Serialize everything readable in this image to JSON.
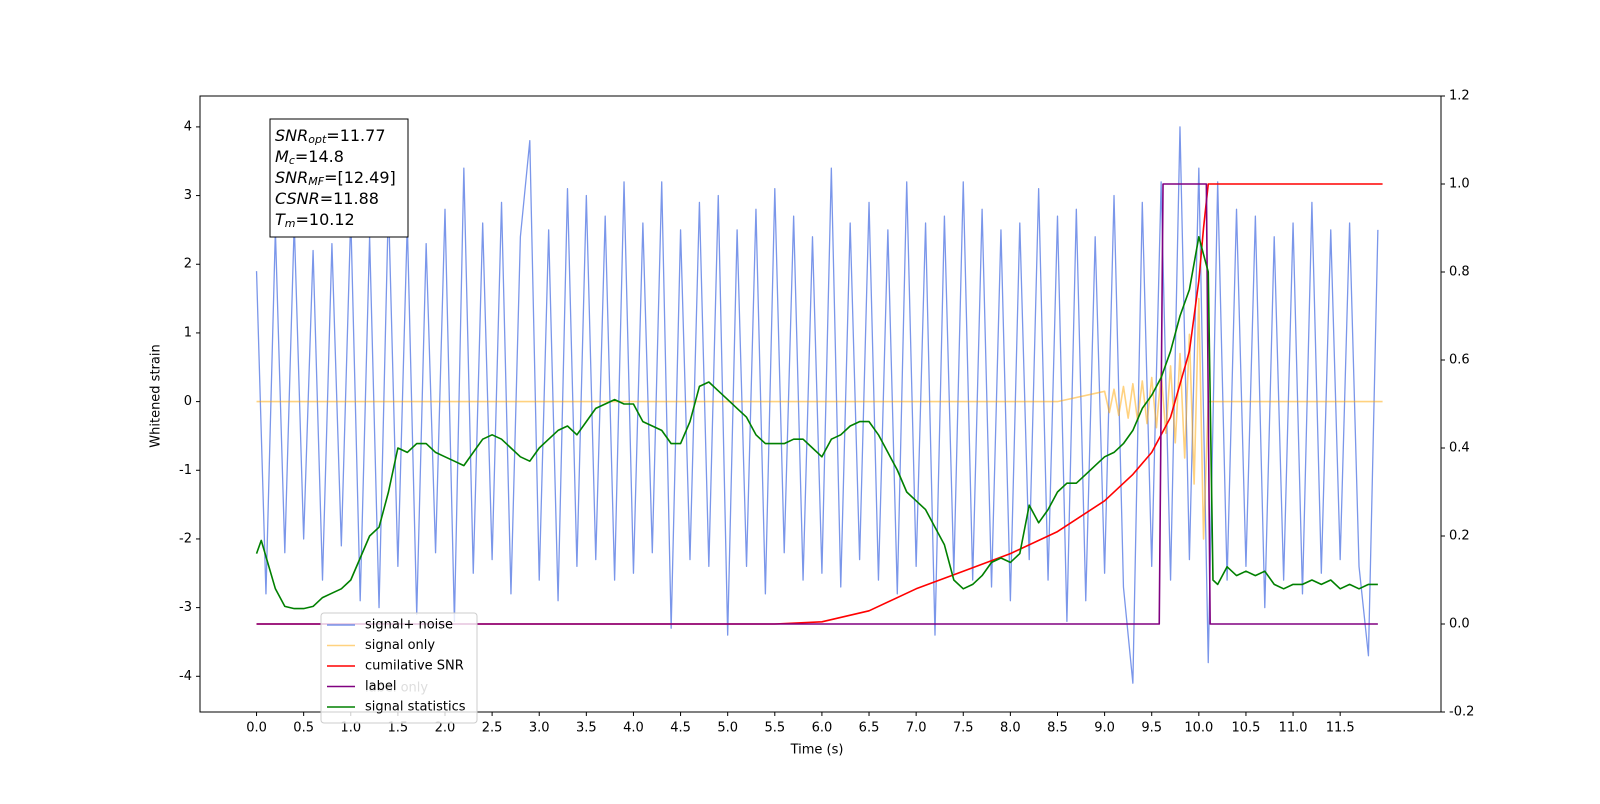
{
  "chart_data": {
    "type": "line",
    "xlabel": "Time (s)",
    "ylabel": "Whitened strain",
    "xlim": [
      -0.6,
      12.57
    ],
    "ylim": [
      -4.52,
      4.45
    ],
    "y2lim": [
      -0.2,
      1.2
    ],
    "xticks": [
      {
        "value": 0,
        "label": "0.0"
      },
      0.5,
      {
        "value": 1,
        "label": "1.0"
      },
      1.5,
      {
        "value": 2,
        "label": "2.0"
      },
      2.5,
      {
        "value": 3,
        "label": "3.0"
      },
      3.5,
      {
        "value": 4,
        "label": "4.0"
      },
      4.5,
      {
        "value": 5,
        "label": "5.0"
      },
      5.5,
      {
        "value": 6,
        "label": "6.0"
      },
      6.5,
      {
        "value": 7,
        "label": "7.0"
      },
      7.5,
      {
        "value": 8,
        "label": "8.0"
      },
      8.5,
      {
        "value": 9,
        "label": "9.0"
      },
      9.5,
      {
        "value": 10,
        "label": "10.0"
      },
      10.5,
      {
        "value": 11,
        "label": "11.0"
      },
      11.5
    ],
    "yticks": [
      -4,
      -3,
      -2,
      -1,
      0,
      1,
      2,
      3,
      4
    ],
    "y2ticks": [
      -0.2,
      {
        "value": 0,
        "label": "0.0"
      },
      0.2,
      0.4,
      0.6,
      0.8,
      {
        "value": 1,
        "label": "1.0"
      },
      1.2
    ],
    "legend": "lower left",
    "faded_legend_text": "label only",
    "annotation": [
      {
        "symbol": "SNR",
        "sub": "opt",
        "text": "=11.77"
      },
      {
        "symbol": "M",
        "sub": "c",
        "text": "=14.8"
      },
      {
        "symbol": "SNR",
        "sub": "MF",
        "text": "=[12.49]"
      },
      {
        "symbol": "CSNR",
        "sub": null,
        "text": "=11.88"
      },
      {
        "symbol": "T",
        "sub": "m",
        "text": "=10.12"
      }
    ],
    "series": [
      {
        "name": "signal+ noise",
        "color": "#4169e1",
        "alpha": 0.7,
        "axis": "y",
        "x": [
          0,
          0.1,
          0.2,
          0.3,
          0.4,
          0.5,
          0.6,
          0.7,
          0.8,
          0.9,
          1,
          1.1,
          1.2,
          1.3,
          1.4,
          1.5,
          1.6,
          1.7,
          1.8,
          1.9,
          2,
          2.1,
          2.2,
          2.3,
          2.4,
          2.5,
          2.6,
          2.7,
          2.8,
          2.9,
          3,
          3.1,
          3.2,
          3.3,
          3.4,
          3.5,
          3.6,
          3.7,
          3.8,
          3.9,
          4,
          4.1,
          4.2,
          4.3,
          4.4,
          4.5,
          4.6,
          4.7,
          4.8,
          4.9,
          5,
          5.1,
          5.2,
          5.3,
          5.4,
          5.5,
          5.6,
          5.7,
          5.8,
          5.9,
          6,
          6.1,
          6.2,
          6.3,
          6.4,
          6.5,
          6.6,
          6.7,
          6.8,
          6.9,
          7,
          7.1,
          7.2,
          7.3,
          7.4,
          7.5,
          7.6,
          7.7,
          7.8,
          7.9,
          8,
          8.1,
          8.2,
          8.3,
          8.4,
          8.5,
          8.6,
          8.7,
          8.8,
          8.9,
          9,
          9.1,
          9.2,
          9.3,
          9.4,
          9.5,
          9.6,
          9.7,
          9.8,
          9.9,
          10,
          10.1,
          10.2,
          10.3,
          10.4,
          10.5,
          10.6,
          10.7,
          10.8,
          10.9,
          11,
          11.1,
          11.2,
          11.3,
          11.4,
          11.5,
          11.6,
          11.7,
          11.8,
          11.9
        ],
        "values": [
          1.9,
          -2.8,
          2.5,
          -2.2,
          2.6,
          -2.0,
          2.2,
          -2.6,
          2.3,
          -2.1,
          2.7,
          -2.9,
          2.4,
          -3.0,
          2.9,
          -2.4,
          2.6,
          -3.1,
          2.3,
          -2.2,
          2.8,
          -3.2,
          3.4,
          -2.5,
          2.6,
          -2.3,
          2.9,
          -2.8,
          2.4,
          3.8,
          -2.6,
          2.5,
          -2.9,
          3.1,
          -2.4,
          3.0,
          -2.3,
          2.7,
          -2.6,
          3.2,
          -2.5,
          2.6,
          -2.2,
          3.2,
          -3.3,
          2.5,
          -2.3,
          2.9,
          -2.4,
          3.0,
          -3.4,
          2.5,
          -2.4,
          2.8,
          -2.8,
          3.1,
          -2.2,
          2.7,
          -2.6,
          2.4,
          -2.5,
          3.4,
          -2.7,
          2.6,
          -2.3,
          2.9,
          -2.6,
          2.5,
          -2.8,
          3.2,
          -2.4,
          2.6,
          -3.4,
          2.7,
          -2.5,
          3.2,
          -2.6,
          2.8,
          -2.7,
          2.5,
          -2.9,
          2.6,
          -2.3,
          3.1,
          -2.6,
          2.7,
          -3.2,
          2.8,
          -2.9,
          2.4,
          -2.5,
          3.0,
          -2.7,
          -4.1,
          2.9,
          -2.4,
          3.2,
          -2.6,
          4.0,
          -2.3,
          3.4,
          -3.8,
          3.2,
          -2.6,
          2.8,
          -2.4,
          2.7,
          -3.0,
          2.4,
          -2.6,
          2.6,
          -2.8,
          2.9,
          -2.5,
          2.5,
          -2.3,
          2.6,
          -2.4,
          -3.7,
          2.5
        ]
      },
      {
        "name": "signal only",
        "color": "#ffa500",
        "alpha": 0.5,
        "axis": "y",
        "x": [
          0,
          8.5,
          9.0,
          9.05,
          9.1,
          9.15,
          9.2,
          9.25,
          9.3,
          9.35,
          9.4,
          9.45,
          9.5,
          9.55,
          9.6,
          9.65,
          9.7,
          9.75,
          9.8,
          9.85,
          9.9,
          9.95,
          10.0,
          10.05,
          10.1,
          11.95
        ],
        "values": [
          0,
          0,
          0.15,
          -0.16,
          0.18,
          -0.2,
          0.22,
          -0.24,
          0.26,
          -0.28,
          0.3,
          -0.32,
          0.35,
          -0.38,
          0.42,
          -0.46,
          0.52,
          -0.6,
          0.7,
          -0.82,
          0.98,
          -1.2,
          1.5,
          -2.0,
          0,
          0
        ]
      },
      {
        "name": "cumilative SNR",
        "color": "#ff0000",
        "alpha": 1,
        "axis": "y2",
        "x": [
          0,
          5.5,
          6.0,
          6.5,
          7.0,
          7.5,
          8.0,
          8.5,
          9.0,
          9.3,
          9.5,
          9.7,
          9.9,
          10.0,
          10.05,
          10.1,
          11.95
        ],
        "values": [
          0,
          0,
          0.005,
          0.03,
          0.08,
          0.12,
          0.16,
          0.21,
          0.28,
          0.34,
          0.39,
          0.47,
          0.62,
          0.78,
          0.9,
          1.0,
          1.0
        ]
      },
      {
        "name": "label",
        "color": "#800080",
        "alpha": 1,
        "axis": "y2",
        "x": [
          0,
          9.58,
          9.62,
          10.08,
          10.12,
          11.9
        ],
        "values": [
          0,
          0,
          1,
          1,
          0,
          0
        ]
      },
      {
        "name": "signal statistics",
        "color": "#008000",
        "alpha": 1,
        "axis": "y2",
        "x": [
          0,
          0.05,
          0.2,
          0.3,
          0.4,
          0.5,
          0.6,
          0.7,
          0.8,
          0.9,
          1,
          1.1,
          1.2,
          1.3,
          1.4,
          1.5,
          1.6,
          1.7,
          1.8,
          1.9,
          2,
          2.1,
          2.2,
          2.3,
          2.4,
          2.5,
          2.6,
          2.7,
          2.8,
          2.9,
          3,
          3.1,
          3.2,
          3.3,
          3.4,
          3.5,
          3.6,
          3.7,
          3.8,
          3.9,
          4,
          4.1,
          4.2,
          4.3,
          4.4,
          4.5,
          4.6,
          4.7,
          4.8,
          4.9,
          5,
          5.1,
          5.2,
          5.3,
          5.4,
          5.5,
          5.6,
          5.7,
          5.8,
          5.9,
          6,
          6.1,
          6.2,
          6.3,
          6.4,
          6.5,
          6.6,
          6.7,
          6.8,
          6.9,
          7,
          7.1,
          7.2,
          7.3,
          7.4,
          7.5,
          7.6,
          7.7,
          7.8,
          7.9,
          8,
          8.1,
          8.2,
          8.3,
          8.4,
          8.5,
          8.6,
          8.7,
          8.8,
          8.9,
          9,
          9.1,
          9.2,
          9.3,
          9.4,
          9.5,
          9.6,
          9.7,
          9.8,
          9.9,
          10,
          10.1,
          10.15,
          10.2,
          10.3,
          10.4,
          10.5,
          10.6,
          10.7,
          10.8,
          10.9,
          11,
          11.1,
          11.2,
          11.3,
          11.4,
          11.5,
          11.6,
          11.7,
          11.8,
          11.9
        ],
        "values": [
          0.16,
          0.19,
          0.08,
          0.04,
          0.035,
          0.035,
          0.04,
          0.06,
          0.07,
          0.08,
          0.1,
          0.15,
          0.2,
          0.22,
          0.3,
          0.4,
          0.39,
          0.41,
          0.41,
          0.39,
          0.38,
          0.37,
          0.36,
          0.39,
          0.42,
          0.43,
          0.42,
          0.4,
          0.38,
          0.37,
          0.4,
          0.42,
          0.44,
          0.45,
          0.43,
          0.46,
          0.49,
          0.5,
          0.51,
          0.5,
          0.5,
          0.46,
          0.45,
          0.44,
          0.41,
          0.41,
          0.46,
          0.54,
          0.55,
          0.53,
          0.51,
          0.49,
          0.47,
          0.43,
          0.41,
          0.41,
          0.41,
          0.42,
          0.42,
          0.4,
          0.38,
          0.42,
          0.43,
          0.45,
          0.46,
          0.46,
          0.43,
          0.39,
          0.35,
          0.3,
          0.28,
          0.26,
          0.22,
          0.18,
          0.1,
          0.08,
          0.09,
          0.11,
          0.14,
          0.15,
          0.14,
          0.16,
          0.27,
          0.23,
          0.26,
          0.3,
          0.32,
          0.32,
          0.34,
          0.36,
          0.38,
          0.39,
          0.41,
          0.44,
          0.49,
          0.52,
          0.56,
          0.62,
          0.7,
          0.76,
          0.88,
          0.8,
          0.1,
          0.09,
          0.13,
          0.11,
          0.12,
          0.11,
          0.12,
          0.09,
          0.08,
          0.09,
          0.09,
          0.1,
          0.09,
          0.1,
          0.08,
          0.09,
          0.08,
          0.09,
          0.09
        ]
      }
    ]
  }
}
